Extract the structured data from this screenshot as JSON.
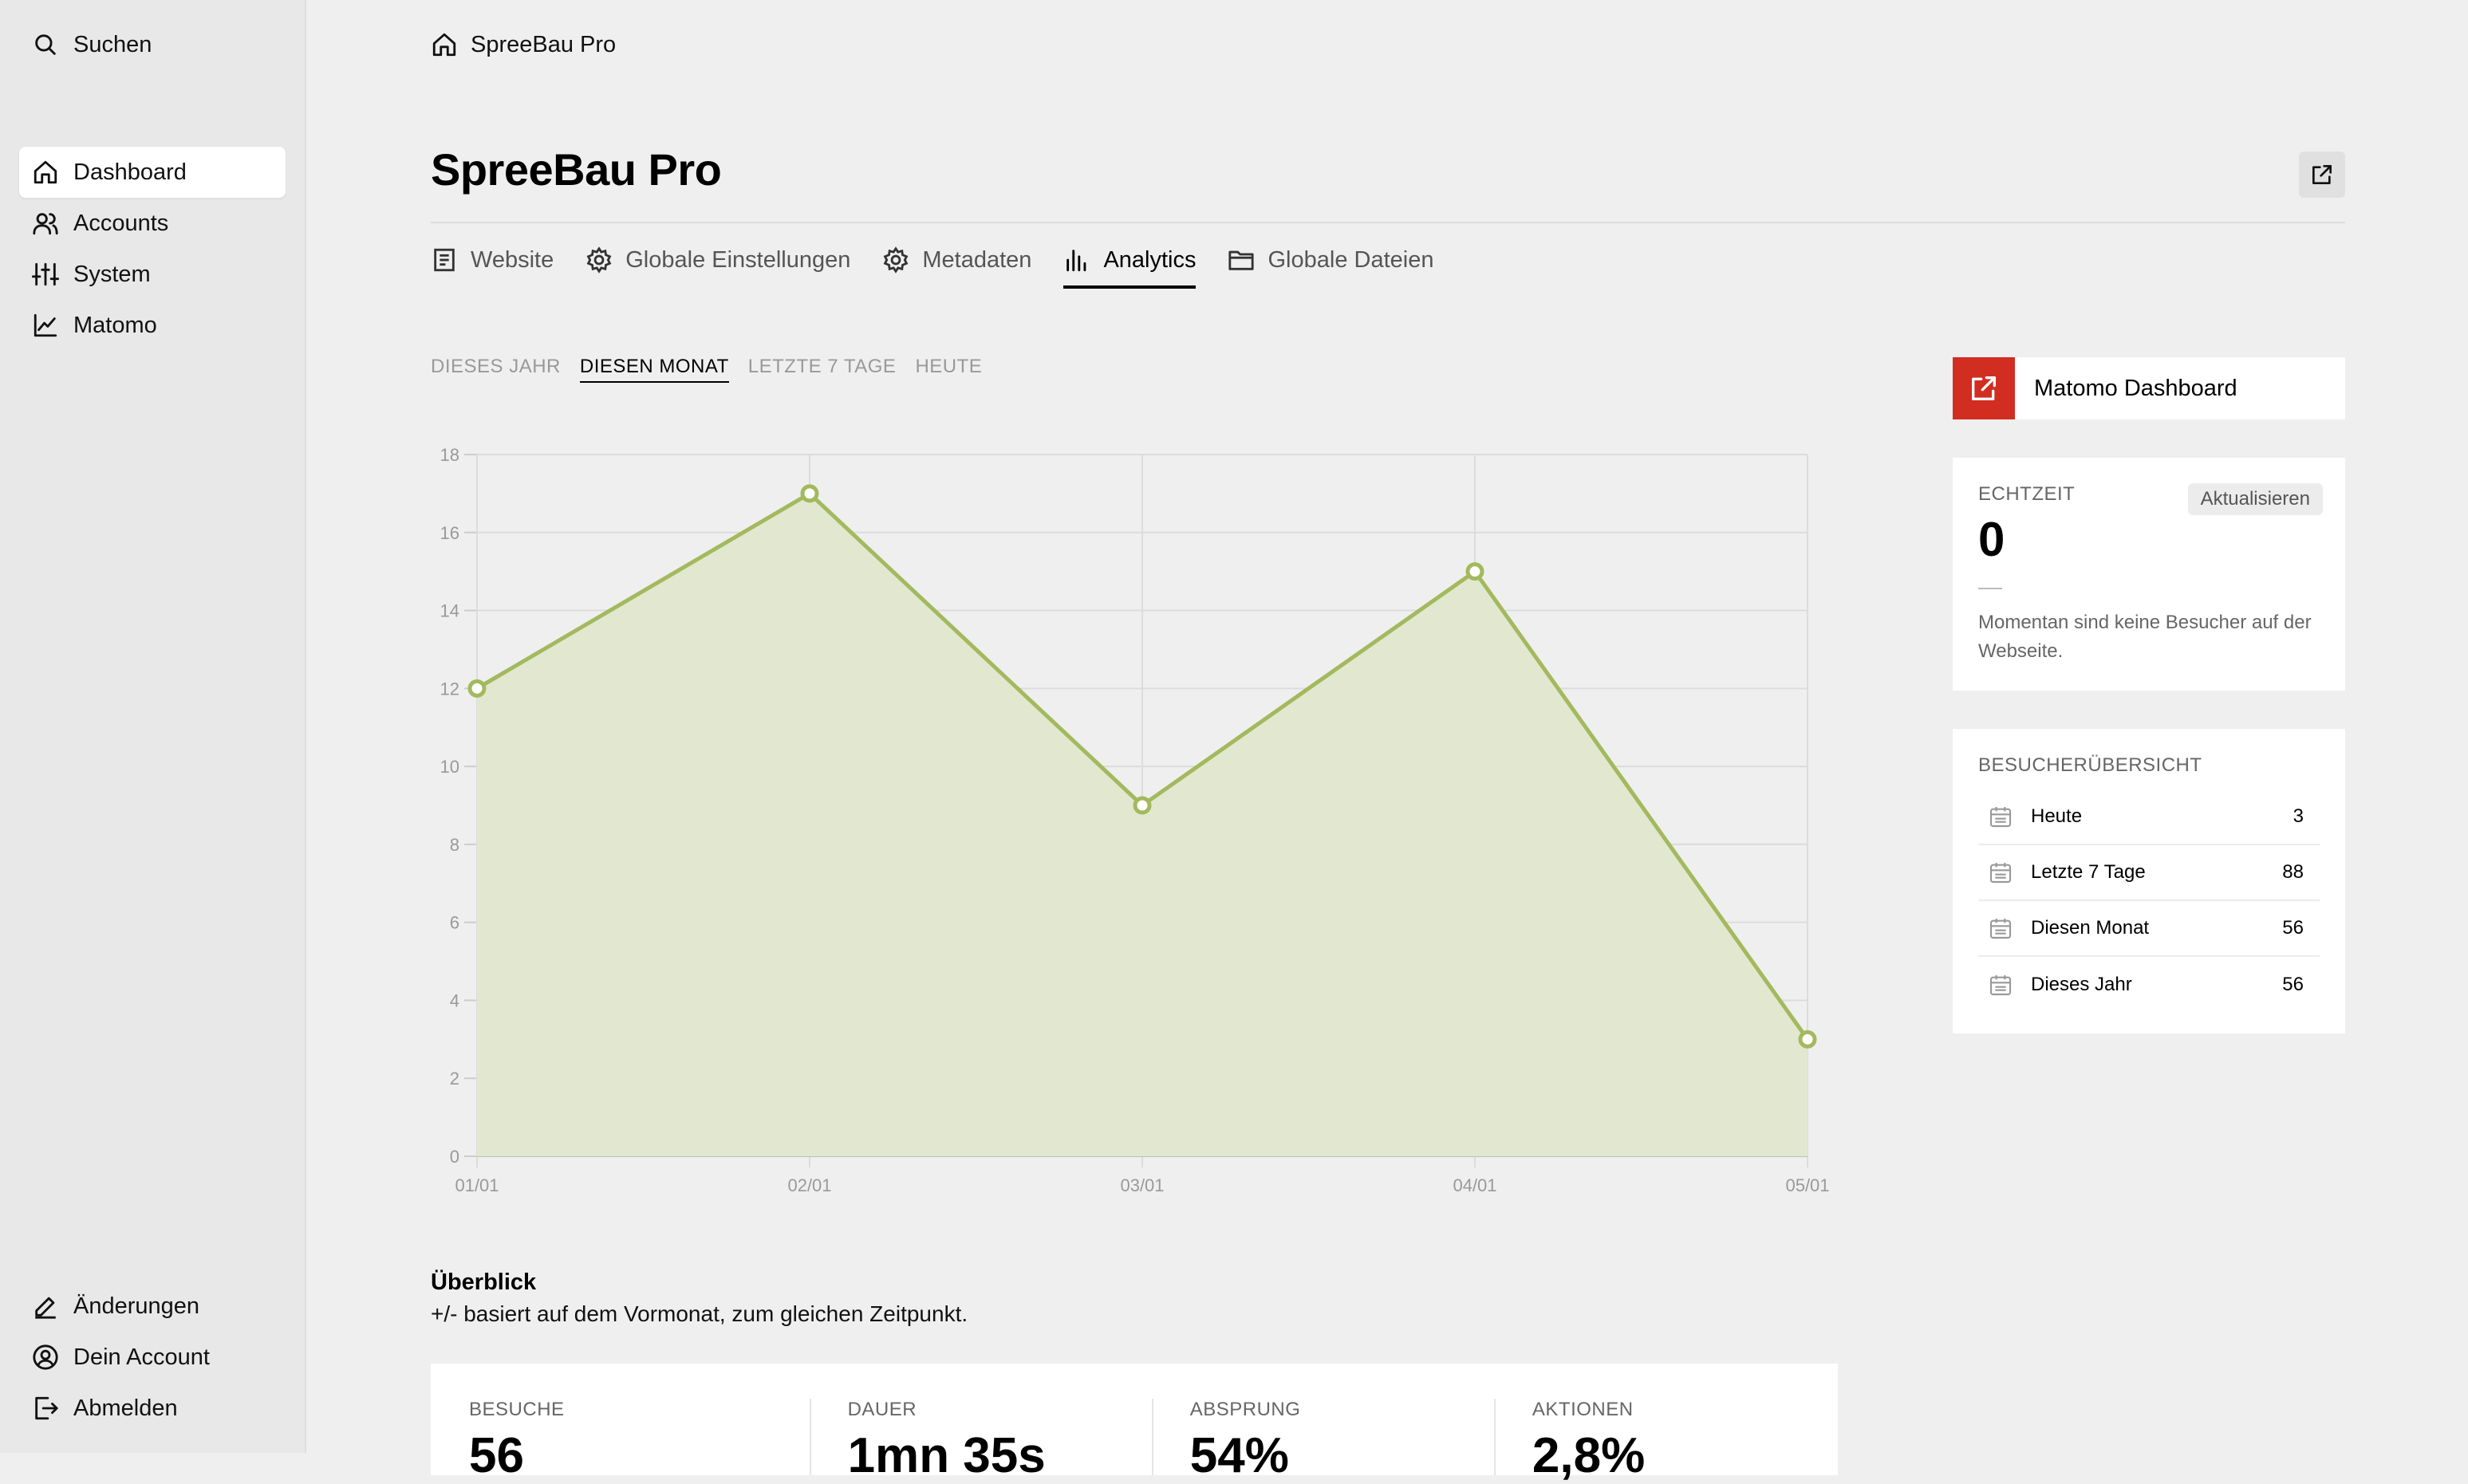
{
  "sidebar": {
    "search_label": "Suchen",
    "items": [
      {
        "label": "Dashboard",
        "icon": "home-icon",
        "active": true
      },
      {
        "label": "Accounts",
        "icon": "users-icon"
      },
      {
        "label": "System",
        "icon": "sliders-icon"
      },
      {
        "label": "Matomo",
        "icon": "chart-line-icon"
      }
    ],
    "bottom_items": [
      {
        "label": "Änderungen",
        "icon": "pen-icon"
      },
      {
        "label": "Dein Account",
        "icon": "user-circle-icon"
      },
      {
        "label": "Abmelden",
        "icon": "logout-icon"
      }
    ]
  },
  "breadcrumb": {
    "label": "SpreeBau Pro",
    "icon": "home-icon"
  },
  "page": {
    "title": "SpreeBau Pro"
  },
  "tabs": [
    {
      "label": "Website",
      "icon": "document-icon"
    },
    {
      "label": "Globale Einstellungen",
      "icon": "gear-icon"
    },
    {
      "label": "Metadaten",
      "icon": "gear-icon"
    },
    {
      "label": "Analytics",
      "icon": "bar-chart-icon",
      "active": true
    },
    {
      "label": "Globale Dateien",
      "icon": "folder-icon"
    }
  ],
  "periods": [
    {
      "label": "DIESES JAHR"
    },
    {
      "label": "DIESEN MONAT",
      "active": true
    },
    {
      "label": "LETZTE 7 TAGE"
    },
    {
      "label": "HEUTE"
    }
  ],
  "chart_data": {
    "type": "area",
    "x": [
      "01/01",
      "02/01",
      "03/01",
      "04/01",
      "05/01"
    ],
    "values": [
      12,
      17,
      9,
      15,
      3
    ],
    "yticks": [
      0,
      2,
      4,
      6,
      8,
      10,
      12,
      14,
      16,
      18
    ],
    "ylim": [
      0,
      18
    ],
    "grid": true,
    "line_color": "#a3b95e",
    "fill_color": "#e1e8cf"
  },
  "overview": {
    "title": "Überblick",
    "subtitle": "+/- basiert auf dem Vormonat, zum gleichen Zeitpunkt.",
    "stats": [
      {
        "label": "BESUCHE",
        "value": "56"
      },
      {
        "label": "DAUER",
        "value": "1mn 35s"
      },
      {
        "label": "ABSPRUNG",
        "value": "54%"
      },
      {
        "label": "AKTIONEN",
        "value": "2,8%"
      }
    ]
  },
  "matomo_link": {
    "label": "Matomo Dashboard",
    "color": "#d22d21"
  },
  "realtime": {
    "label": "ECHTZEIT",
    "value": "0",
    "refresh_label": "Aktualisieren",
    "message": "Momentan sind keine Besucher auf der Webseite."
  },
  "visitors": {
    "label": "BESUCHERÜBERSICHT",
    "rows": [
      {
        "label": "Heute",
        "value": "3"
      },
      {
        "label": "Letzte 7 Tage",
        "value": "88"
      },
      {
        "label": "Diesen Monat",
        "value": "56"
      },
      {
        "label": "Dieses Jahr",
        "value": "56"
      }
    ]
  }
}
